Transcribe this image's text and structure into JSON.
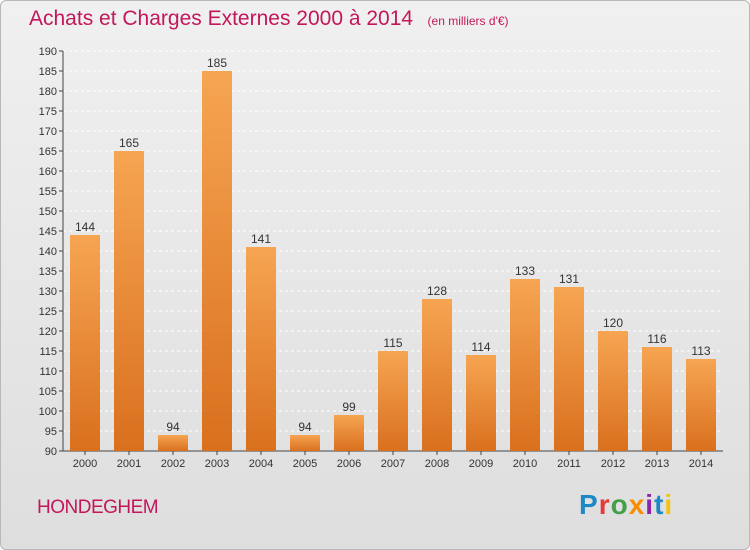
{
  "header": {
    "title": "Achats et Charges Externes 2000 à 2014",
    "subtitle": "(en milliers d'€)"
  },
  "footer": {
    "commune": "HONDEGHEM",
    "logo_text": "Proxiti"
  },
  "colors": {
    "title": "#c2185b",
    "bar_light": "#f6a552",
    "bar_dark": "#d9701e",
    "grid": "#ffffff",
    "background_top": "#f0f0f0",
    "background_bottom": "#dedede"
  },
  "chart_data": {
    "type": "bar",
    "title": "Achats et Charges Externes 2000 à 2014",
    "subtitle": "(en milliers d'€)",
    "categories": [
      "2000",
      "2001",
      "2002",
      "2003",
      "2004",
      "2005",
      "2006",
      "2007",
      "2008",
      "2009",
      "2010",
      "2011",
      "2012",
      "2013",
      "2014"
    ],
    "values": [
      144,
      165,
      94,
      185,
      141,
      94,
      99,
      115,
      128,
      114,
      133,
      131,
      120,
      116,
      113
    ],
    "ylim": [
      90,
      190
    ],
    "yticks": [
      90,
      95,
      100,
      105,
      110,
      115,
      120,
      125,
      130,
      135,
      140,
      145,
      150,
      155,
      160,
      165,
      170,
      175,
      180,
      185,
      190
    ],
    "grid": true,
    "xlabel": "",
    "ylabel": ""
  }
}
